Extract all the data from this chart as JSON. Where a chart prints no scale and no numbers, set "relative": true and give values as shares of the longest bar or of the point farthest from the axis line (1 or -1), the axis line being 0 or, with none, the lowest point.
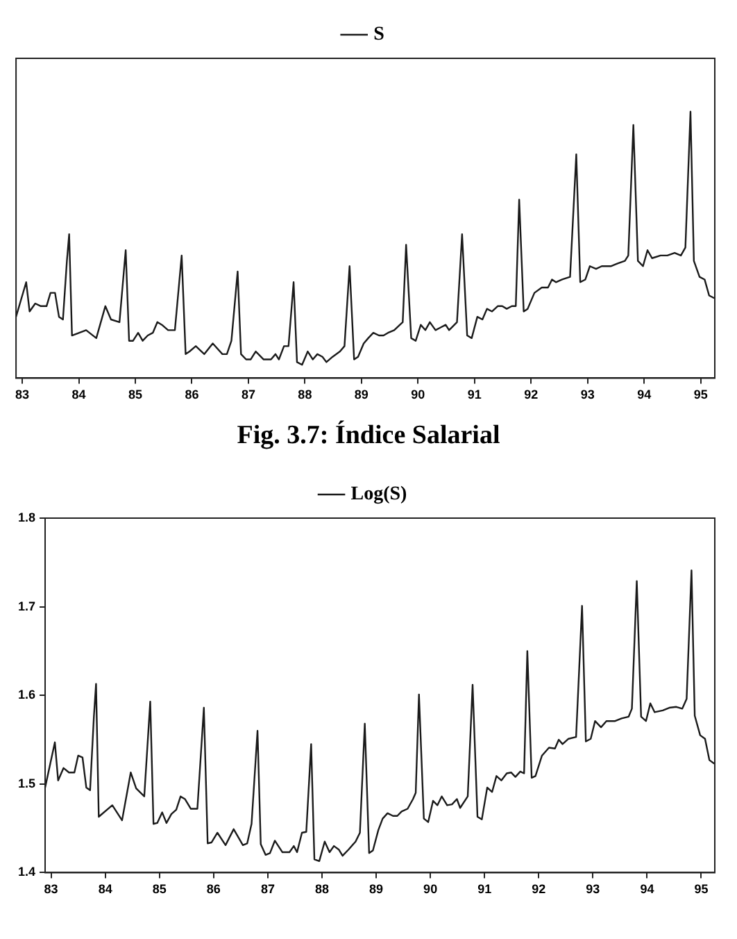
{
  "chart_data": [
    {
      "type": "line",
      "relative": true,
      "x": [
        82.89,
        83.07,
        83.13,
        83.23,
        83.33,
        83.43,
        83.5,
        83.58,
        83.65,
        83.72,
        83.79,
        83.83,
        83.88,
        84.13,
        84.31,
        84.47,
        84.57,
        84.72,
        84.83,
        84.89,
        84.96,
        85.05,
        85.13,
        85.22,
        85.31,
        85.39,
        85.47,
        85.58,
        85.7,
        85.82,
        85.89,
        85.96,
        86.07,
        86.22,
        86.37,
        86.54,
        86.62,
        86.7,
        86.81,
        86.87,
        86.96,
        87.04,
        87.13,
        87.27,
        87.4,
        87.48,
        87.54,
        87.63,
        87.71,
        87.8,
        87.86,
        87.95,
        88.05,
        88.14,
        88.22,
        88.31,
        88.38,
        88.49,
        88.62,
        88.7,
        88.79,
        88.87,
        88.94,
        89.04,
        89.12,
        89.21,
        89.31,
        89.39,
        89.47,
        89.58,
        89.68,
        89.73,
        89.79,
        89.88,
        89.96,
        90.05,
        90.13,
        90.21,
        90.31,
        90.4,
        90.49,
        90.55,
        90.69,
        90.78,
        90.87,
        90.95,
        91.05,
        91.14,
        91.22,
        91.31,
        91.41,
        91.49,
        91.57,
        91.66,
        91.73,
        91.79,
        91.87,
        91.94,
        92.06,
        92.19,
        92.3,
        92.37,
        92.44,
        92.55,
        92.69,
        92.8,
        92.87,
        92.96,
        93.04,
        93.15,
        93.25,
        93.41,
        93.53,
        93.66,
        93.72,
        93.81,
        93.89,
        93.98,
        94.06,
        94.14,
        94.29,
        94.41,
        94.54,
        94.65,
        94.73,
        94.82,
        94.88,
        94.98,
        95.07,
        95.15,
        95.24
      ],
      "series": [
        {
          "name": "S",
          "color": "#1a1a1a",
          "values": [
            0.23,
            0.36,
            0.25,
            0.28,
            0.27,
            0.27,
            0.32,
            0.32,
            0.23,
            0.22,
            0.44,
            0.54,
            0.16,
            0.18,
            0.15,
            0.27,
            0.22,
            0.21,
            0.48,
            0.14,
            0.14,
            0.17,
            0.14,
            0.16,
            0.17,
            0.21,
            0.2,
            0.18,
            0.18,
            0.46,
            0.09,
            0.1,
            0.12,
            0.09,
            0.13,
            0.09,
            0.09,
            0.14,
            0.4,
            0.09,
            0.07,
            0.07,
            0.1,
            0.07,
            0.07,
            0.09,
            0.07,
            0.12,
            0.12,
            0.36,
            0.06,
            0.05,
            0.1,
            0.07,
            0.09,
            0.08,
            0.06,
            0.08,
            0.1,
            0.12,
            0.42,
            0.07,
            0.08,
            0.13,
            0.15,
            0.17,
            0.16,
            0.16,
            0.17,
            0.18,
            0.2,
            0.21,
            0.5,
            0.15,
            0.14,
            0.2,
            0.18,
            0.21,
            0.18,
            0.19,
            0.2,
            0.18,
            0.21,
            0.54,
            0.16,
            0.15,
            0.23,
            0.22,
            0.26,
            0.25,
            0.27,
            0.27,
            0.26,
            0.27,
            0.27,
            0.67,
            0.25,
            0.26,
            0.32,
            0.34,
            0.34,
            0.37,
            0.36,
            0.37,
            0.38,
            0.84,
            0.36,
            0.37,
            0.42,
            0.41,
            0.42,
            0.42,
            0.43,
            0.44,
            0.46,
            0.95,
            0.44,
            0.42,
            0.48,
            0.45,
            0.46,
            0.46,
            0.47,
            0.46,
            0.49,
            1,
            0.44,
            0.38,
            0.37,
            0.31,
            0.3
          ]
        }
      ],
      "xlim": [
        82.89,
        95.25
      ],
      "xticks": [
        83,
        84,
        85,
        86,
        87,
        88,
        89,
        90,
        91,
        92,
        93,
        94,
        95
      ],
      "legend": "top",
      "annotations": [
        "Fig. 3.7: Índice Salarial"
      ]
    },
    {
      "type": "line",
      "x": [
        82.89,
        83.07,
        83.13,
        83.23,
        83.33,
        83.43,
        83.5,
        83.58,
        83.65,
        83.72,
        83.79,
        83.83,
        83.88,
        84.13,
        84.31,
        84.47,
        84.57,
        84.72,
        84.83,
        84.89,
        84.96,
        85.05,
        85.13,
        85.22,
        85.31,
        85.39,
        85.47,
        85.58,
        85.7,
        85.82,
        85.89,
        85.96,
        86.07,
        86.22,
        86.37,
        86.54,
        86.62,
        86.7,
        86.81,
        86.87,
        86.96,
        87.04,
        87.13,
        87.27,
        87.4,
        87.48,
        87.54,
        87.63,
        87.71,
        87.8,
        87.86,
        87.95,
        88.05,
        88.14,
        88.22,
        88.31,
        88.38,
        88.49,
        88.62,
        88.7,
        88.79,
        88.87,
        88.94,
        89.04,
        89.12,
        89.21,
        89.31,
        89.39,
        89.47,
        89.58,
        89.68,
        89.73,
        89.79,
        89.88,
        89.96,
        90.05,
        90.13,
        90.21,
        90.31,
        90.4,
        90.49,
        90.55,
        90.69,
        90.78,
        90.87,
        90.95,
        91.05,
        91.14,
        91.22,
        91.31,
        91.41,
        91.49,
        91.57,
        91.66,
        91.73,
        91.79,
        91.87,
        91.94,
        92.06,
        92.19,
        92.3,
        92.37,
        92.44,
        92.55,
        92.69,
        92.8,
        92.87,
        92.96,
        93.04,
        93.15,
        93.25,
        93.41,
        93.53,
        93.66,
        93.72,
        93.81,
        93.89,
        93.98,
        94.06,
        94.14,
        94.29,
        94.41,
        94.54,
        94.65,
        94.73,
        94.82,
        94.88,
        94.98,
        95.07,
        95.15,
        95.24
      ],
      "series": [
        {
          "name": "Log(S)",
          "color": "#1a1a1a",
          "values": [
            1.496,
            1.547,
            1.504,
            1.518,
            1.513,
            1.513,
            1.532,
            1.53,
            1.496,
            1.493,
            1.576,
            1.613,
            1.463,
            1.476,
            1.459,
            1.513,
            1.495,
            1.486,
            1.593,
            1.455,
            1.456,
            1.468,
            1.456,
            1.466,
            1.471,
            1.486,
            1.483,
            1.472,
            1.472,
            1.586,
            1.433,
            1.434,
            1.445,
            1.431,
            1.449,
            1.431,
            1.433,
            1.455,
            1.56,
            1.432,
            1.42,
            1.422,
            1.436,
            1.423,
            1.423,
            1.43,
            1.423,
            1.445,
            1.446,
            1.545,
            1.415,
            1.413,
            1.435,
            1.423,
            1.43,
            1.426,
            1.419,
            1.426,
            1.435,
            1.445,
            1.568,
            1.422,
            1.425,
            1.448,
            1.461,
            1.467,
            1.464,
            1.464,
            1.469,
            1.472,
            1.483,
            1.49,
            1.601,
            1.461,
            1.457,
            1.481,
            1.476,
            1.486,
            1.476,
            1.477,
            1.483,
            1.473,
            1.486,
            1.612,
            1.463,
            1.46,
            1.496,
            1.491,
            1.509,
            1.504,
            1.512,
            1.513,
            1.508,
            1.514,
            1.512,
            1.65,
            1.507,
            1.509,
            1.532,
            1.541,
            1.54,
            1.55,
            1.545,
            1.551,
            1.553,
            1.701,
            1.548,
            1.551,
            1.571,
            1.564,
            1.571,
            1.571,
            1.574,
            1.576,
            1.585,
            1.729,
            1.576,
            1.571,
            1.591,
            1.581,
            1.583,
            1.586,
            1.587,
            1.585,
            1.596,
            1.741,
            1.577,
            1.555,
            1.551,
            1.527,
            1.523
          ]
        }
      ],
      "xlim": [
        82.89,
        95.25
      ],
      "xticks": [
        83,
        84,
        85,
        86,
        87,
        88,
        89,
        90,
        91,
        92,
        93,
        94,
        95
      ],
      "ylim": [
        1.4,
        1.8
      ],
      "yticks": [
        1.4,
        1.5,
        1.6,
        1.7,
        1.8
      ],
      "legend": "top"
    }
  ]
}
